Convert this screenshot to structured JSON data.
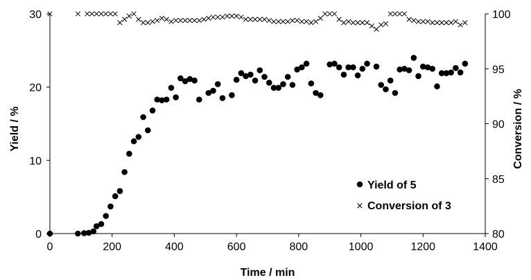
{
  "chart_data": {
    "type": "scatter",
    "xlabel": "Time / min",
    "ylabel": "Yield / %",
    "y2label": "Conversion / %",
    "xlim": [
      0,
      1400
    ],
    "ylim": [
      0,
      30
    ],
    "y2lim": [
      80,
      100
    ],
    "x_ticks": [
      "0",
      "200",
      "400",
      "600",
      "800",
      "1000",
      "1200",
      "1400"
    ],
    "y_ticks": [
      "0",
      "10",
      "20",
      "30"
    ],
    "y2_ticks": [
      "80",
      "85",
      "90",
      "95",
      "100"
    ],
    "legend_position": "bottom-right",
    "grid": false,
    "series": [
      {
        "name": "Yield of 5",
        "marker": "filled-circle",
        "axis": "left",
        "points": [
          [
            0,
            0
          ],
          [
            90,
            0
          ],
          [
            110,
            0.05
          ],
          [
            125,
            0.1
          ],
          [
            140,
            0.3
          ],
          [
            150,
            1.0
          ],
          [
            165,
            1.3
          ],
          [
            180,
            2.4
          ],
          [
            195,
            3.7
          ],
          [
            210,
            5.1
          ],
          [
            225,
            5.8
          ],
          [
            240,
            8.4
          ],
          [
            255,
            10.9
          ],
          [
            270,
            12.6
          ],
          [
            285,
            13.2
          ],
          [
            300,
            15.9
          ],
          [
            315,
            14.1
          ],
          [
            330,
            16.8
          ],
          [
            345,
            18.3
          ],
          [
            360,
            18.2
          ],
          [
            375,
            18.3
          ],
          [
            390,
            19.9
          ],
          [
            405,
            18.6
          ],
          [
            420,
            21.2
          ],
          [
            435,
            20.8
          ],
          [
            450,
            21.1
          ],
          [
            465,
            20.9
          ],
          [
            480,
            18.3
          ],
          [
            510,
            19.2
          ],
          [
            525,
            19.5
          ],
          [
            540,
            20.4
          ],
          [
            555,
            18.5
          ],
          [
            585,
            18.9
          ],
          [
            600,
            21.0
          ],
          [
            615,
            21.9
          ],
          [
            630,
            21.5
          ],
          [
            645,
            21.7
          ],
          [
            660,
            20.9
          ],
          [
            675,
            22.3
          ],
          [
            690,
            21.4
          ],
          [
            705,
            20.6
          ],
          [
            720,
            19.9
          ],
          [
            735,
            19.9
          ],
          [
            750,
            20.4
          ],
          [
            765,
            21.4
          ],
          [
            780,
            20.3
          ],
          [
            795,
            22.4
          ],
          [
            810,
            22.7
          ],
          [
            825,
            23.2
          ],
          [
            840,
            20.5
          ],
          [
            855,
            19.2
          ],
          [
            870,
            18.9
          ],
          [
            900,
            23.1
          ],
          [
            915,
            23.2
          ],
          [
            930,
            22.7
          ],
          [
            945,
            21.7
          ],
          [
            960,
            22.7
          ],
          [
            975,
            22.7
          ],
          [
            990,
            21.6
          ],
          [
            1005,
            22.5
          ],
          [
            1020,
            23.2
          ],
          [
            1050,
            22.8
          ],
          [
            1065,
            20.3
          ],
          [
            1080,
            19.7
          ],
          [
            1095,
            20.9
          ],
          [
            1110,
            19.2
          ],
          [
            1125,
            22.4
          ],
          [
            1140,
            22.5
          ],
          [
            1155,
            22.3
          ],
          [
            1170,
            24.0
          ],
          [
            1185,
            21.5
          ],
          [
            1200,
            22.8
          ],
          [
            1215,
            22.7
          ],
          [
            1230,
            22.5
          ],
          [
            1245,
            20.1
          ],
          [
            1260,
            21.9
          ],
          [
            1275,
            21.9
          ],
          [
            1290,
            22.0
          ],
          [
            1305,
            22.6
          ],
          [
            1320,
            22.0
          ],
          [
            1335,
            23.2
          ]
        ]
      },
      {
        "name": "Conversion of 3",
        "marker": "x",
        "axis": "right",
        "points": [
          [
            0,
            100
          ],
          [
            90,
            100
          ],
          [
            120,
            100
          ],
          [
            135,
            100
          ],
          [
            150,
            100
          ],
          [
            165,
            100
          ],
          [
            180,
            100
          ],
          [
            195,
            100
          ],
          [
            210,
            100
          ],
          [
            225,
            99.2
          ],
          [
            240,
            99.5
          ],
          [
            255,
            99.8
          ],
          [
            270,
            100
          ],
          [
            285,
            99.5
          ],
          [
            300,
            99.2
          ],
          [
            315,
            99.2
          ],
          [
            330,
            99.3
          ],
          [
            345,
            99.4
          ],
          [
            360,
            99.6
          ],
          [
            375,
            99.5
          ],
          [
            390,
            99.3
          ],
          [
            405,
            99.4
          ],
          [
            420,
            99.4
          ],
          [
            435,
            99.4
          ],
          [
            450,
            99.4
          ],
          [
            465,
            99.4
          ],
          [
            480,
            99.4
          ],
          [
            495,
            99.5
          ],
          [
            510,
            99.6
          ],
          [
            525,
            99.7
          ],
          [
            540,
            99.7
          ],
          [
            555,
            99.7
          ],
          [
            570,
            99.8
          ],
          [
            585,
            99.8
          ],
          [
            600,
            99.8
          ],
          [
            615,
            99.7
          ],
          [
            630,
            99.5
          ],
          [
            645,
            99.5
          ],
          [
            660,
            99.5
          ],
          [
            675,
            99.5
          ],
          [
            690,
            99.5
          ],
          [
            705,
            99.4
          ],
          [
            720,
            99.3
          ],
          [
            735,
            99.3
          ],
          [
            750,
            99.3
          ],
          [
            765,
            99.3
          ],
          [
            780,
            99.4
          ],
          [
            795,
            99.4
          ],
          [
            810,
            99.3
          ],
          [
            825,
            99.3
          ],
          [
            840,
            99.2
          ],
          [
            855,
            99.3
          ],
          [
            870,
            99.6
          ],
          [
            885,
            100
          ],
          [
            900,
            100
          ],
          [
            915,
            100
          ],
          [
            930,
            99.5
          ],
          [
            945,
            99.2
          ],
          [
            960,
            99.3
          ],
          [
            975,
            99.2
          ],
          [
            990,
            99.2
          ],
          [
            1005,
            99.2
          ],
          [
            1020,
            99.2
          ],
          [
            1035,
            98.9
          ],
          [
            1050,
            98.6
          ],
          [
            1065,
            99.0
          ],
          [
            1080,
            99.1
          ],
          [
            1095,
            100
          ],
          [
            1110,
            100
          ],
          [
            1125,
            100
          ],
          [
            1140,
            100
          ],
          [
            1155,
            99.5
          ],
          [
            1170,
            99.4
          ],
          [
            1185,
            99.3
          ],
          [
            1200,
            99.3
          ],
          [
            1215,
            99.3
          ],
          [
            1230,
            99.2
          ],
          [
            1245,
            99.2
          ],
          [
            1260,
            99.2
          ],
          [
            1275,
            99.2
          ],
          [
            1290,
            99.2
          ],
          [
            1305,
            99.3
          ],
          [
            1320,
            99.0
          ],
          [
            1335,
            99.2
          ]
        ]
      }
    ]
  }
}
